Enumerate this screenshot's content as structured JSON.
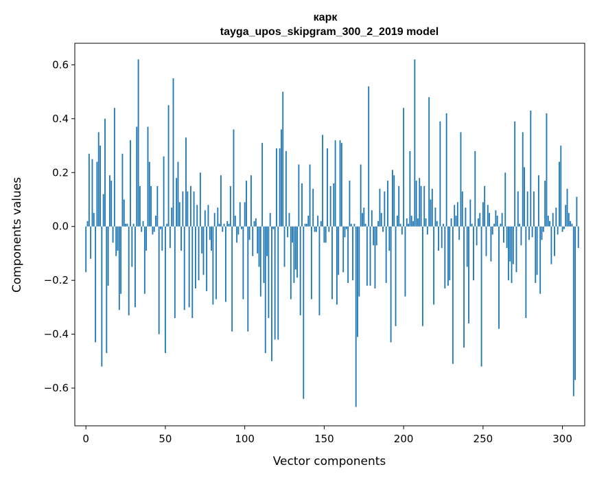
{
  "chart_data": {
    "type": "bar",
    "title": "карк",
    "subtitle": "tayga_upos_skipgram_300_2_2019 model",
    "xlabel": "Vector components",
    "ylabel": "Components values",
    "xlim": [
      -7,
      314
    ],
    "ylim": [
      -0.74,
      0.68
    ],
    "x_ticks": [
      0,
      50,
      100,
      150,
      200,
      250,
      300
    ],
    "y_ticks": [
      -0.6,
      -0.4,
      -0.2,
      0.0,
      0.2,
      0.4,
      0.6
    ],
    "y_tick_labels": [
      "−0.6",
      "−0.4",
      "−0.2",
      "0.0",
      "0.2",
      "0.4",
      "0.6"
    ],
    "x_tick_labels": [
      "0",
      "50",
      "100",
      "150",
      "200",
      "250",
      "300"
    ],
    "bar_color": "#1f77b4",
    "values": [
      -0.17,
      0.02,
      0.27,
      -0.12,
      0.25,
      0.05,
      -0.43,
      0.24,
      0.35,
      0.3,
      -0.52,
      0.12,
      0.4,
      -0.47,
      -0.22,
      0.19,
      0.17,
      -0.06,
      0.44,
      -0.11,
      -0.09,
      -0.31,
      -0.25,
      0.27,
      0.1,
      0.01,
      0.01,
      -0.33,
      0.32,
      -0.15,
      0.01,
      -0.3,
      0.37,
      0.62,
      0.15,
      -0.02,
      0.02,
      -0.25,
      -0.09,
      0.37,
      0.24,
      0.15,
      -0.03,
      -0.02,
      0.04,
      0.15,
      -0.4,
      -0.01,
      -0.09,
      0.26,
      -0.47,
      0.01,
      0.45,
      -0.08,
      0.07,
      0.55,
      -0.34,
      0.18,
      0.24,
      0.09,
      -0.09,
      0.13,
      -0.31,
      0.33,
      0.13,
      -0.3,
      0.15,
      -0.34,
      0.13,
      -0.23,
      0.08,
      -0.2,
      0.2,
      -0.1,
      -0.18,
      0.06,
      -0.24,
      0.08,
      -0.05,
      -0.09,
      -0.29,
      0.05,
      -0.27,
      0.07,
      0.01,
      0.19,
      -0.02,
      0.01,
      -0.28,
      0.02,
      0.01,
      0.15,
      -0.39,
      0.36,
      0.04,
      -0.06,
      -0.03,
      0.09,
      -0.01,
      -0.27,
      0.09,
      0.17,
      -0.39,
      -0.05,
      0.19,
      -0.11,
      0.02,
      0.03,
      -0.1,
      -0.15,
      -0.26,
      0.31,
      -0.21,
      -0.47,
      -0.11,
      -0.34,
      0.05,
      -0.5,
      -0.01,
      -0.42,
      0.29,
      -0.42,
      0.29,
      0.36,
      0.5,
      -0.15,
      0.28,
      -0.04,
      0.05,
      -0.27,
      -0.06,
      -0.21,
      -0.16,
      -0.19,
      0.23,
      -0.33,
      0.16,
      -0.64,
      0.01,
      0.01,
      0.04,
      0.23,
      -0.27,
      0.14,
      -0.02,
      -0.02,
      0.04,
      -0.33,
      0.02,
      0.34,
      -0.06,
      -0.06,
      0.29,
      -0.02,
      0.15,
      -0.27,
      0.16,
      0.32,
      -0.29,
      -0.18,
      0.32,
      0.31,
      -0.17,
      -0.04,
      -0.01,
      -0.21,
      0.17,
      0.01,
      -0.2,
      0.01,
      -0.67,
      -0.41,
      -0.26,
      0.23,
      0.05,
      0.07,
      0.01,
      -0.22,
      0.52,
      -0.22,
      0.06,
      -0.07,
      -0.23,
      -0.07,
      0.02,
      0.14,
      0.05,
      -0.02,
      0.13,
      -0.21,
      0.17,
      -0.09,
      -0.43,
      0.21,
      0.19,
      -0.37,
      0.04,
      0.15,
      0.01,
      -0.03,
      0.44,
      -0.26,
      0.03,
      0.01,
      0.28,
      0.04,
      0.02,
      0.62,
      0.17,
      0.03,
      0.18,
      0.15,
      -0.37,
      0.15,
      0.03,
      -0.03,
      0.48,
      0.1,
      0.14,
      -0.29,
      0.07,
      0.02,
      -0.09,
      0.39,
      -0.08,
      0.01,
      -0.23,
      0.42,
      -0.22,
      -0.2,
      0.03,
      -0.51,
      0.08,
      0.04,
      0.09,
      -0.05,
      0.35,
      0.13,
      -0.45,
      0.07,
      -0.15,
      -0.36,
      0.1,
      0.01,
      -0.2,
      0.28,
      -0.07,
      0.03,
      0.05,
      -0.52,
      0.09,
      0.15,
      -0.11,
      0.08,
      0.05,
      -0.13,
      -0.03,
      0.01,
      0.06,
      0.04,
      -0.38,
      0.01,
      0.05,
      -0.06,
      0.2,
      -0.08,
      -0.2,
      -0.13,
      -0.21,
      -0.14,
      0.39,
      -0.17,
      0.13,
      0.01,
      -0.07,
      0.35,
      0.22,
      -0.34,
      0.13,
      -0.05,
      0.43,
      -0.04,
      0.13,
      -0.21,
      -0.18,
      0.19,
      -0.25,
      -0.05,
      -0.02,
      0.17,
      0.42,
      0.04,
      0.02,
      -0.14,
      0.05,
      -0.11,
      0.07,
      -0.03,
      0.24,
      0.3,
      -0.02,
      -0.01,
      0.08,
      0.14,
      0.05,
      0.02,
      0.01,
      -0.63,
      -0.57,
      0.11,
      -0.08
    ]
  }
}
